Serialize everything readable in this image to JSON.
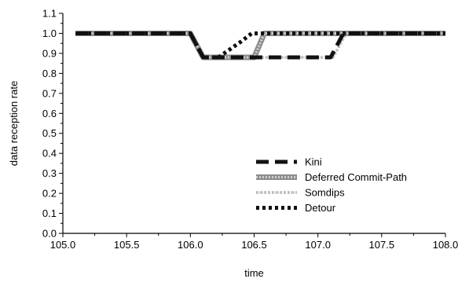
{
  "chart_data": {
    "type": "line",
    "title": "",
    "xlabel": "time",
    "ylabel": "data reception rate",
    "xlim": [
      105.0,
      108.0
    ],
    "ylim": [
      0.0,
      1.1
    ],
    "xticks": [
      "105.0",
      "105.5",
      "106.0",
      "106.5",
      "107.0",
      "107.5",
      "108.0"
    ],
    "yticks": [
      "0.0",
      "0.1",
      "0.2",
      "0.3",
      "0.4",
      "0.5",
      "0.6",
      "0.7",
      "0.8",
      "0.9",
      "1.0",
      "1.1"
    ],
    "grid": false,
    "legend_position": "lower-right",
    "series": [
      {
        "name": "Kini",
        "style": "long-dash",
        "color": "#111111",
        "x": [
          105.1,
          106.0,
          106.1,
          107.1,
          107.2,
          108.0
        ],
        "y": [
          1.0,
          1.0,
          0.88,
          0.88,
          1.0,
          1.0
        ]
      },
      {
        "name": "Deferred Commit-Path",
        "style": "thick-gray",
        "color": "#8c8c8c",
        "x": [
          105.1,
          106.0,
          106.1,
          106.5,
          106.58,
          108.0
        ],
        "y": [
          1.0,
          1.0,
          0.88,
          0.88,
          1.0,
          1.0
        ]
      },
      {
        "name": "Somdips",
        "style": "light-dotted",
        "color": "#c8c8c8",
        "x": [
          105.1,
          106.0,
          106.1,
          107.12,
          107.22,
          108.0
        ],
        "y": [
          1.0,
          1.0,
          0.88,
          0.88,
          1.0,
          1.0
        ]
      },
      {
        "name": "Detour",
        "style": "dotted",
        "color": "#111111",
        "x": [
          105.1,
          106.0,
          106.1,
          106.22,
          106.4,
          106.48,
          108.0
        ],
        "y": [
          1.0,
          1.0,
          0.88,
          0.88,
          0.96,
          1.0,
          1.0
        ]
      }
    ]
  }
}
